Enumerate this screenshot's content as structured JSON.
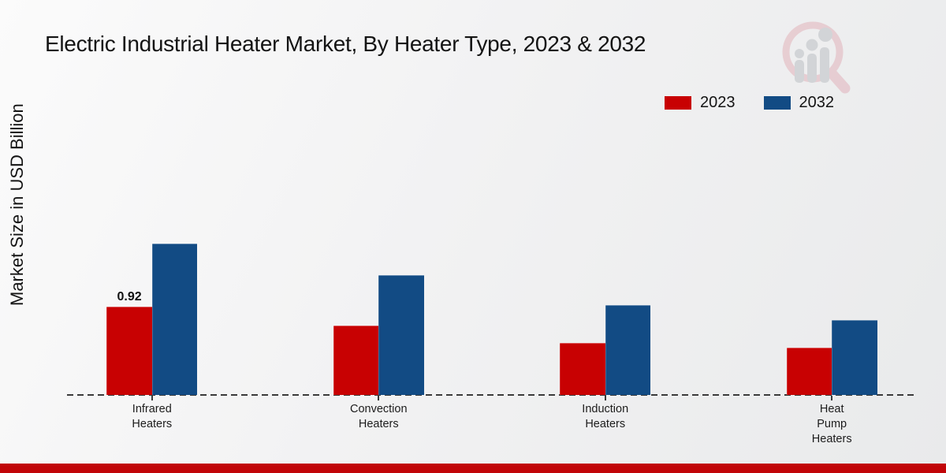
{
  "title": "Electric Industrial Heater Market, By Heater Type, 2023 & 2032",
  "ylabel": "Market Size in USD Billion",
  "colors": {
    "series_2023": "#c80102",
    "series_2032": "#124b84",
    "bottom_strip": "#c10508",
    "axis": "#3a3a3a"
  },
  "watermark": "magnifier-bar-chart-logo",
  "chart_data": {
    "type": "bar",
    "categories": [
      "Infrared Heaters",
      "Convection Heaters",
      "Induction Heaters",
      "Heat Pump Heaters"
    ],
    "series": [
      {
        "name": "2023",
        "color": "#c80102",
        "values": [
          0.92,
          0.72,
          0.54,
          0.49
        ]
      },
      {
        "name": "2032",
        "color": "#124b84",
        "values": [
          1.58,
          1.25,
          0.94,
          0.78
        ]
      }
    ],
    "bar_label": {
      "category_index": 0,
      "series_index": 0,
      "text": "0.92"
    },
    "ylim": [
      0,
      1.8
    ],
    "grid": false,
    "y_ticks_visible": false,
    "legend_position": "top-right",
    "x_axis_style": "dashed"
  }
}
